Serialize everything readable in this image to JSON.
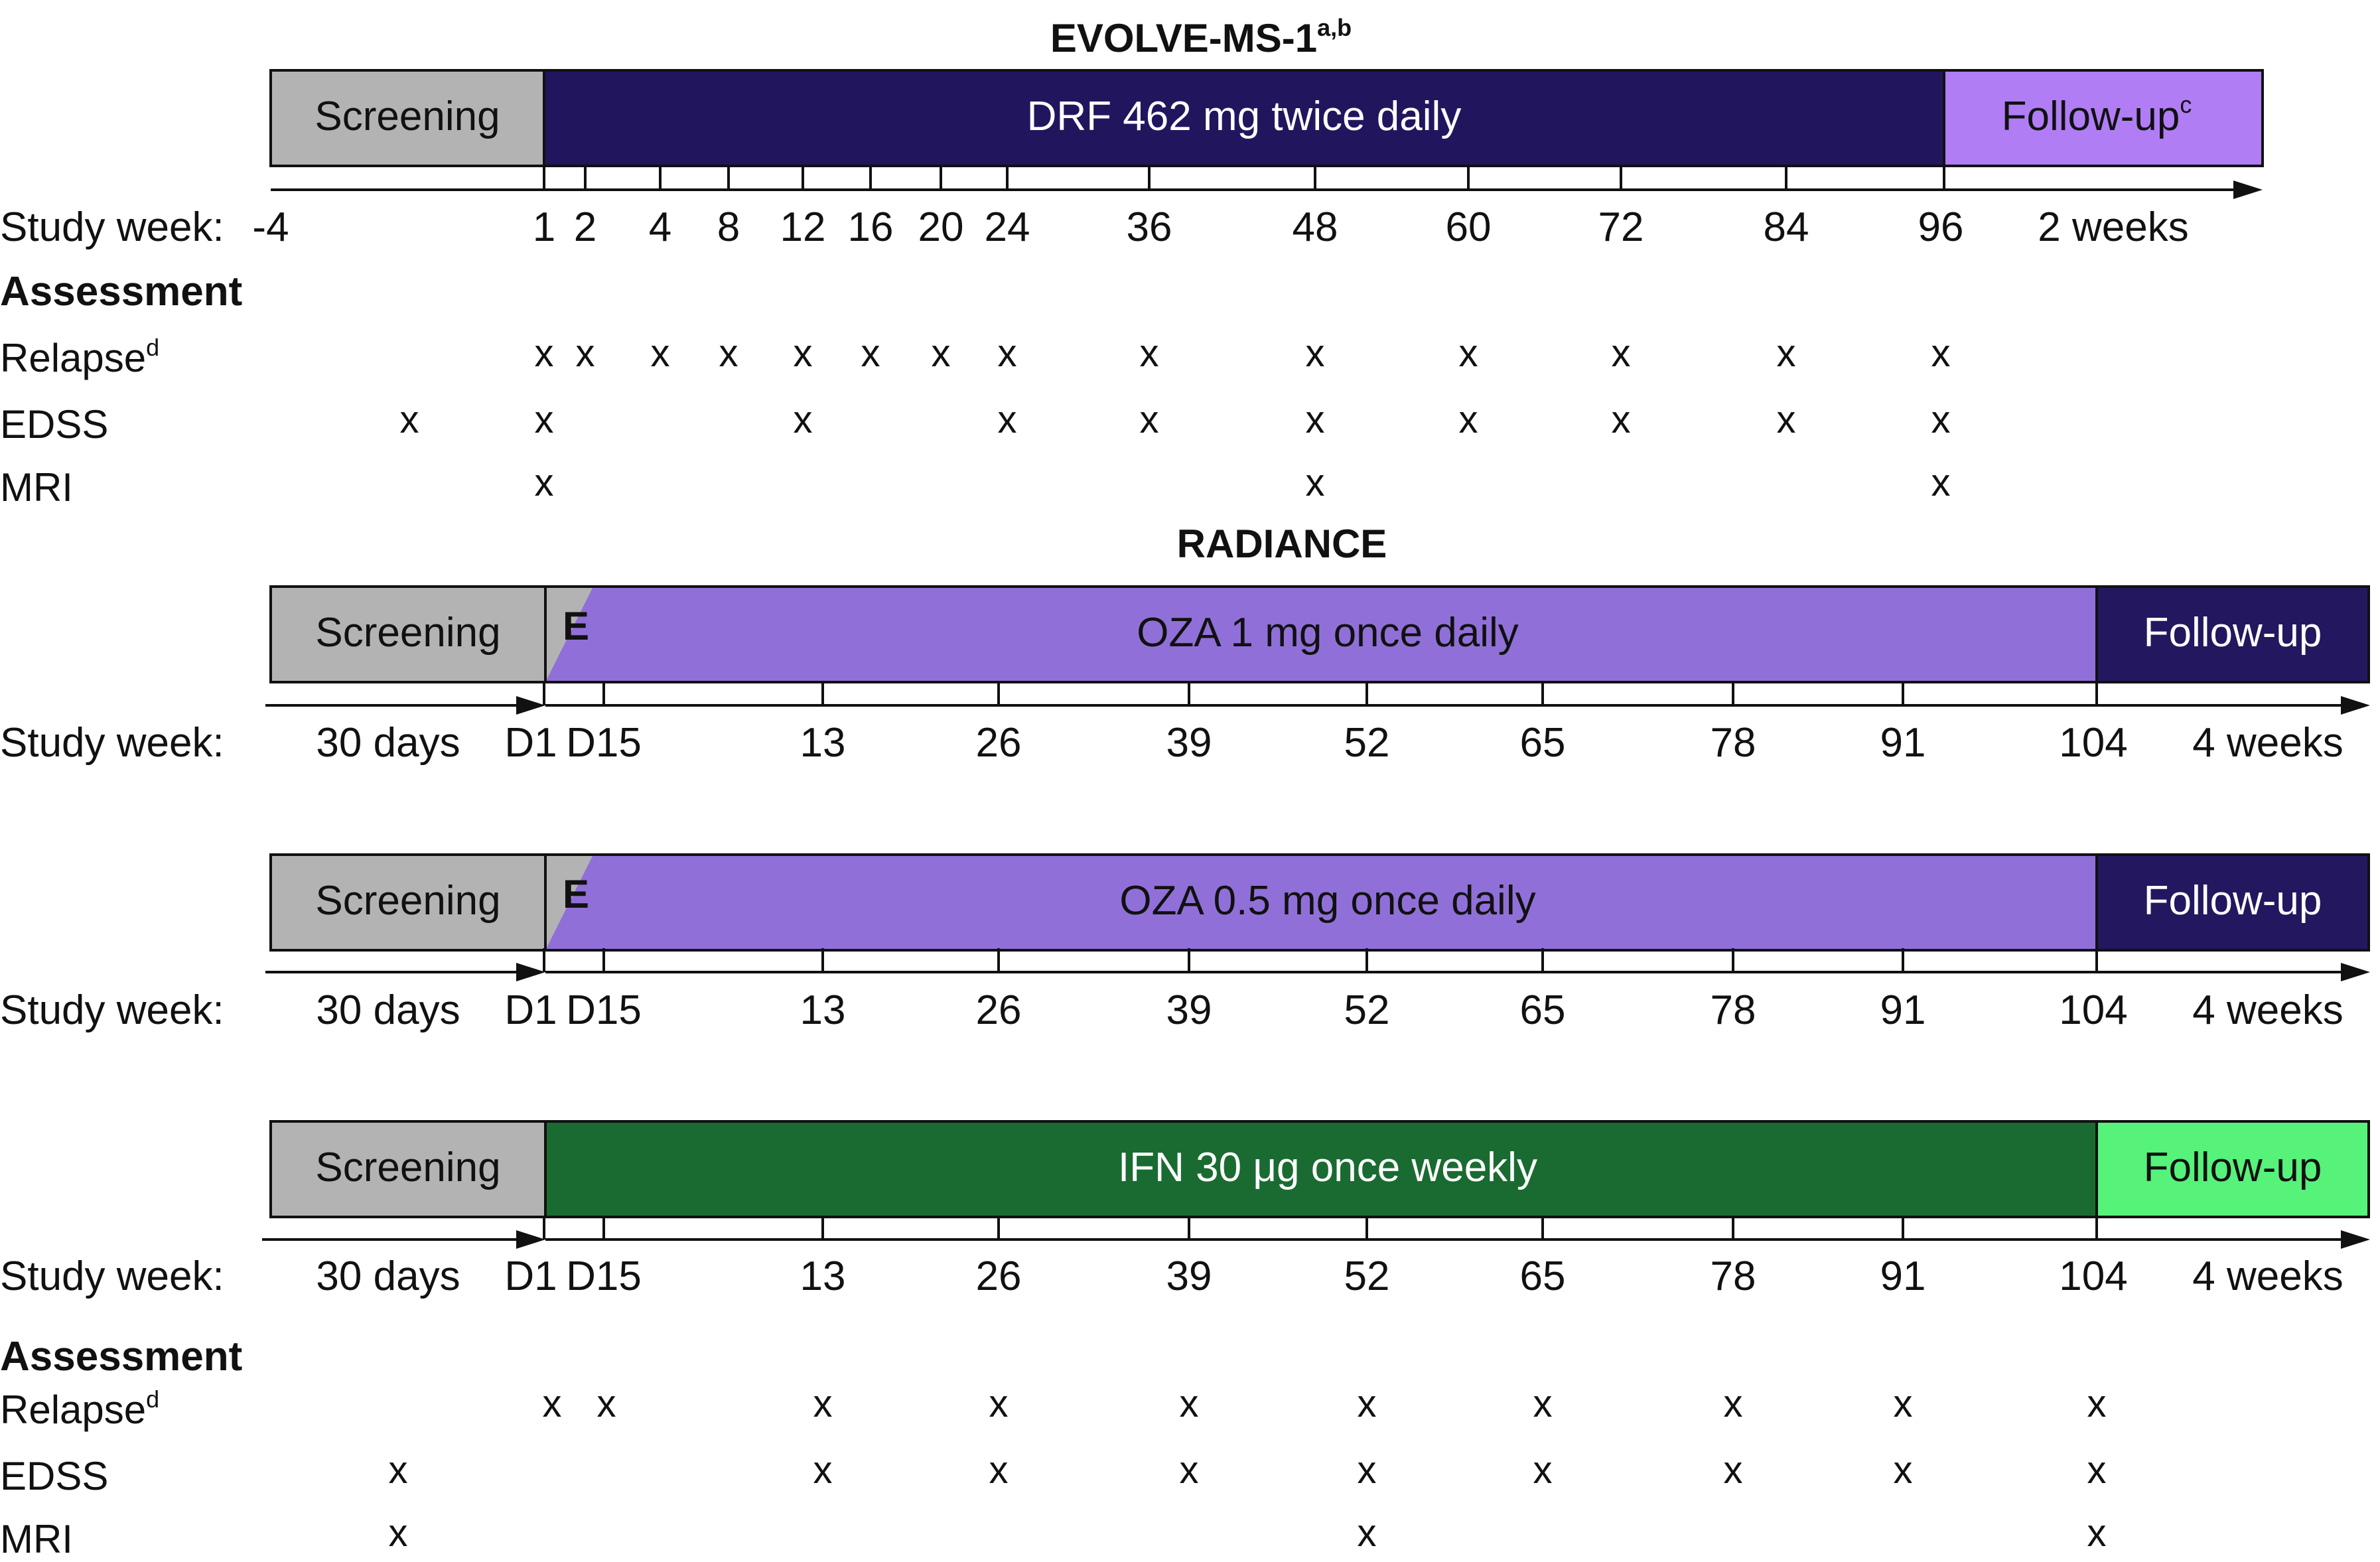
{
  "colors": {
    "screening": "#b3b3b3",
    "drf": "#21165e",
    "drf_followup": "#b07df5",
    "oza": "#9070d8",
    "oza_followup": "#23175f",
    "ifn": "#1a6b31",
    "ifn_followup": "#56f27a"
  },
  "evolve": {
    "title": "EVOLVE-MS-1",
    "title_sup": "a,b",
    "screening_label": "Screening",
    "treatment_label": "DRF 462 mg twice daily",
    "followup_label": "Follow-up",
    "followup_sup": "c",
    "week_label": "Study week:",
    "ticks": [
      "-4",
      "1",
      "2",
      "4",
      "8",
      "12",
      "16",
      "20",
      "24",
      "36",
      "48",
      "60",
      "72",
      "84",
      "96"
    ],
    "followup_duration": "2 weeks",
    "assessment_heading": "Assessment",
    "assessments": [
      {
        "label": "Relapse",
        "sup": "d",
        "weeks": [
          "1",
          "2",
          "4",
          "8",
          "12",
          "16",
          "20",
          "24",
          "36",
          "48",
          "60",
          "72",
          "84",
          "96"
        ]
      },
      {
        "label": "EDSS",
        "sup": "",
        "weeks": [
          "screen",
          "1",
          "12",
          "24",
          "36",
          "48",
          "60",
          "72",
          "84",
          "96"
        ]
      },
      {
        "label": "MRI",
        "sup": "",
        "weeks": [
          "1",
          "48",
          "96"
        ]
      }
    ],
    "mark": "x"
  },
  "radiance": {
    "title": "RADIANCE",
    "week_label": "Study week:",
    "screening_duration": "30 days",
    "ticks": [
      "D1",
      "D15",
      "13",
      "26",
      "39",
      "52",
      "65",
      "78",
      "91",
      "104"
    ],
    "followup_duration": "4 weeks",
    "arms": [
      {
        "screening_label": "Screening",
        "escalation_label": "E",
        "treatment_label": "OZA 1 mg once daily",
        "followup_label": "Follow-up"
      },
      {
        "screening_label": "Screening",
        "escalation_label": "E",
        "treatment_label": "OZA 0.5 mg once daily",
        "followup_label": "Follow-up"
      },
      {
        "screening_label": "Screening",
        "escalation_label": "",
        "treatment_label": "IFN 30 μg once weekly",
        "followup_label": "Follow-up"
      }
    ],
    "assessment_heading": "Assessment",
    "assessments": [
      {
        "label": "Relapse",
        "sup": "d",
        "weeks": [
          "D1",
          "D15",
          "13",
          "26",
          "39",
          "52",
          "65",
          "78",
          "91",
          "104"
        ]
      },
      {
        "label": "EDSS",
        "sup": "",
        "weeks": [
          "screen",
          "13",
          "26",
          "39",
          "52",
          "65",
          "78",
          "91",
          "104"
        ]
      },
      {
        "label": "MRI",
        "sup": "",
        "weeks": [
          "screen",
          "52",
          "104"
        ]
      }
    ],
    "mark": "x"
  }
}
